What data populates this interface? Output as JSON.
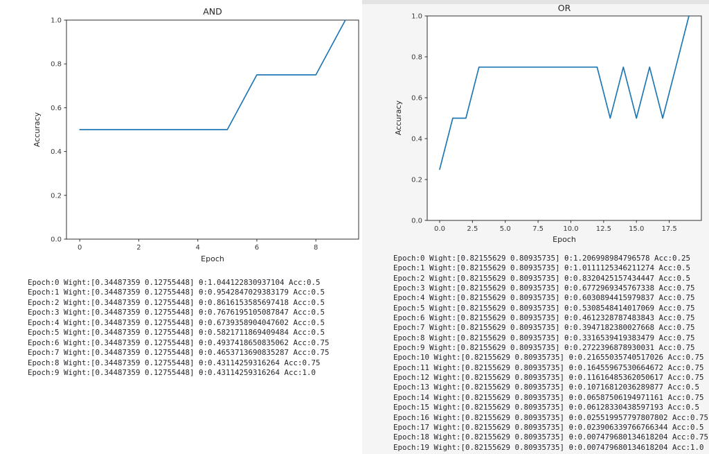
{
  "colors": {
    "line": "#1f77b4",
    "axis": "#2e2e2e",
    "tick_label": "#3a3a3a",
    "console_text": "#25252c",
    "left_bg": "#ffffff",
    "right_bg": "#f5f5f5",
    "right_top_strip": "#e3e3e3",
    "plot_area_bg": "#ffffff"
  },
  "chart_data": [
    {
      "id": "and",
      "type": "line",
      "title": "AND",
      "xlabel": "Epoch",
      "ylabel": "Accuracy",
      "x": [
        0,
        1,
        2,
        3,
        4,
        5,
        6,
        7,
        8,
        9
      ],
      "y": [
        0.5,
        0.5,
        0.5,
        0.5,
        0.5,
        0.5,
        0.75,
        0.75,
        0.75,
        1.0
      ],
      "xlim": [
        -0.45,
        9.45
      ],
      "ylim": [
        0.0,
        1.0
      ],
      "xticks": [
        0,
        2,
        4,
        6,
        8
      ],
      "xtick_labels": [
        "0",
        "2",
        "4",
        "6",
        "8"
      ],
      "yticks": [
        0.0,
        0.2,
        0.4,
        0.6,
        0.8,
        1.0
      ],
      "ytick_labels": [
        "0.0",
        "0.2",
        "0.4",
        "0.6",
        "0.8",
        "1.0"
      ],
      "grid": false,
      "legend": null
    },
    {
      "id": "or",
      "type": "line",
      "title": "OR",
      "xlabel": "Epoch",
      "ylabel": "Accuracy",
      "x": [
        0,
        1,
        2,
        3,
        4,
        5,
        6,
        7,
        8,
        9,
        10,
        11,
        12,
        13,
        14,
        15,
        16,
        17,
        18,
        19
      ],
      "y": [
        0.25,
        0.5,
        0.5,
        0.75,
        0.75,
        0.75,
        0.75,
        0.75,
        0.75,
        0.75,
        0.75,
        0.75,
        0.75,
        0.5,
        0.75,
        0.5,
        0.75,
        0.5,
        0.75,
        1.0
      ],
      "xlim": [
        -0.95,
        19.95
      ],
      "ylim": [
        0.0,
        1.0
      ],
      "xticks": [
        0,
        2.5,
        5,
        7.5,
        10,
        12.5,
        15,
        17.5
      ],
      "xtick_labels": [
        "0.0",
        "2.5",
        "5.0",
        "7.5",
        "10.0",
        "12.5",
        "15.0",
        "17.5"
      ],
      "yticks": [
        0.0,
        0.2,
        0.4,
        0.6,
        0.8,
        1.0
      ],
      "ytick_labels": [
        "0.0",
        "0.2",
        "0.4",
        "0.6",
        "0.8",
        "1.0"
      ],
      "grid": false,
      "legend": null
    }
  ],
  "and_console": {
    "lines": [
      "Epoch:0 Wight:[0.34487359 0.12755448] θ:1.044122830937104 Acc:0.5",
      "Epoch:1 Wight:[0.34487359 0.12755448] θ:0.9542847029383179 Acc:0.5",
      "Epoch:2 Wight:[0.34487359 0.12755448] θ:0.8616153585697418 Acc:0.5",
      "Epoch:3 Wight:[0.34487359 0.12755448] θ:0.7676195105087847 Acc:0.5",
      "Epoch:4 Wight:[0.34487359 0.12755448] θ:0.6739358904047602 Acc:0.5",
      "Epoch:5 Wight:[0.34487359 0.12755448] θ:0.5821711869409484 Acc:0.5",
      "Epoch:6 Wight:[0.34487359 0.12755448] θ:0.4937418650835062 Acc:0.75",
      "Epoch:7 Wight:[0.34487359 0.12755448] θ:0.4653713690835287 Acc:0.75",
      "Epoch:8 Wight:[0.34487359 0.12755448] θ:0.43114259316264 Acc:0.75",
      "Epoch:9 Wight:[0.34487359 0.12755448] θ:0.43114259316264 Acc:1.0"
    ]
  },
  "or_console": {
    "lines": [
      "Epoch:0 Wight:[0.82155629 0.80935735] θ:1.206998984796578 Acc:0.25",
      "Epoch:1 Wight:[0.82155629 0.80935735] θ:1.0111125346211274 Acc:0.5",
      "Epoch:2 Wight:[0.82155629 0.80935735] θ:0.8320425157434447 Acc:0.5",
      "Epoch:3 Wight:[0.82155629 0.80935735] θ:0.6772969345767338 Acc:0.75",
      "Epoch:4 Wight:[0.82155629 0.80935735] θ:0.6030894415979837 Acc:0.75",
      "Epoch:5 Wight:[0.82155629 0.80935735] θ:0.5308548414017069 Acc:0.75",
      "Epoch:6 Wight:[0.82155629 0.80935735] θ:0.4612328787483843 Acc:0.75",
      "Epoch:7 Wight:[0.82155629 0.80935735] θ:0.3947182380027668 Acc:0.75",
      "Epoch:8 Wight:[0.82155629 0.80935735] θ:0.3316539419383479 Acc:0.75",
      "Epoch:9 Wight:[0.82155629 0.80935735] θ:0.2722396878930031 Acc:0.75",
      "Epoch:10 Wight:[0.82155629 0.80935735] θ:0.21655035740517026 Acc:0.75",
      "Epoch:11 Wight:[0.82155629 0.80935735] θ:0.16455967530664672 Acc:0.75",
      "Epoch:12 Wight:[0.82155629 0.80935735] θ:0.11616485362050617 Acc:0.75",
      "Epoch:13 Wight:[0.82155629 0.80935735] θ:0.10716812036289877 Acc:0.5",
      "Epoch:14 Wight:[0.82155629 0.80935735] θ:0.06587506194971161 Acc:0.75",
      "Epoch:15 Wight:[0.82155629 0.80935735] θ:0.06128330438597193 Acc:0.5",
      "Epoch:16 Wight:[0.82155629 0.80935735] θ:0.025519957797807802 Acc:0.75",
      "Epoch:17 Wight:[0.82155629 0.80935735] θ:0.023906339766766344 Acc:0.5",
      "Epoch:18 Wight:[0.82155629 0.80935735] θ:0.007479680134618204 Acc:0.75",
      "Epoch:19 Wight:[0.82155629 0.80935735] θ:0.007479680134618204 Acc:1.0"
    ]
  }
}
